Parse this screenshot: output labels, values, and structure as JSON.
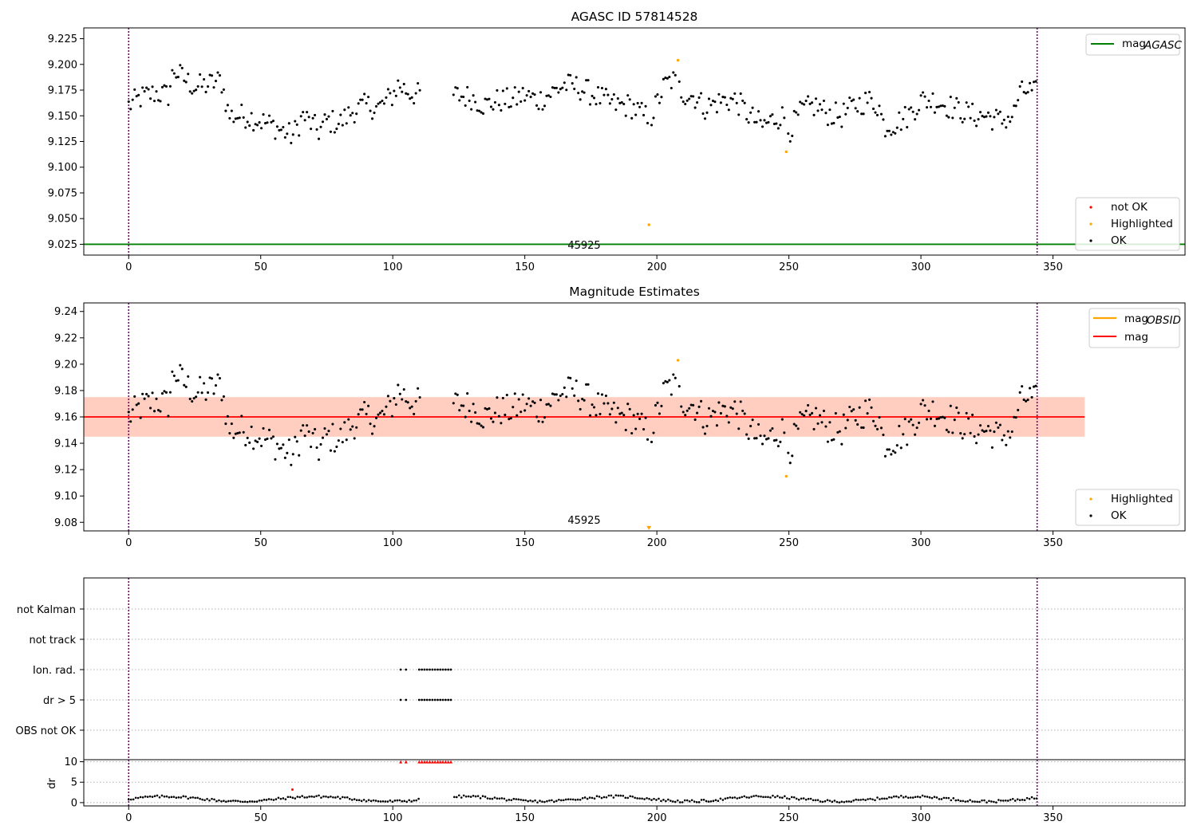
{
  "chart_data": [
    {
      "type": "scatter",
      "title": "AGASC ID 57814528",
      "xlim": [
        -17,
        400
      ],
      "ylim": [
        9.0145,
        9.2355
      ],
      "x_ticks": [
        0,
        50,
        100,
        150,
        200,
        250,
        300,
        350
      ],
      "y_ticks": [
        "9.025",
        "9.050",
        "9.075",
        "9.100",
        "9.125",
        "9.150",
        "9.175",
        "9.200",
        "9.225"
      ],
      "vlines": [
        0,
        344
      ],
      "hline": {
        "name": "mag_AGASC",
        "y": 9.025,
        "color": "#008000"
      },
      "annotation": {
        "text": "45925",
        "x": 172,
        "y": 9.025
      },
      "legend_lines": [
        {
          "name": "mag",
          "sub": "AGASC",
          "color": "#008000"
        }
      ],
      "legend_points": [
        {
          "name": "not OK",
          "color": "#ff0000"
        },
        {
          "name": "Highlighted",
          "color": "#ffa500"
        },
        {
          "name": "OK",
          "color": "#000000"
        }
      ],
      "highlighted": [
        [
          197,
          9.044
        ],
        [
          208,
          9.204
        ],
        [
          249,
          9.115
        ]
      ]
    },
    {
      "type": "scatter",
      "title": "Magnitude Estimates",
      "xlim": [
        -17,
        400
      ],
      "ylim": [
        9.0735,
        9.2465
      ],
      "x_ticks": [
        0,
        50,
        100,
        150,
        200,
        250,
        300,
        350
      ],
      "y_ticks": [
        "9.08",
        "9.10",
        "9.12",
        "9.14",
        "9.16",
        "9.18",
        "9.20",
        "9.22",
        "9.24"
      ],
      "vlines": [
        0,
        344
      ],
      "mag": 9.16,
      "band_outer": [
        9.145,
        9.175
      ],
      "band_inner": [
        9.145,
        9.175
      ],
      "band_x": [
        -17,
        362
      ],
      "annotation": {
        "text": "45925",
        "x": 172,
        "y": 9.077
      },
      "legend_lines": [
        {
          "name": "mag",
          "sub": "OBSID",
          "color": "#ffa500"
        },
        {
          "name": "mag",
          "sub": "",
          "color": "#ff0000"
        }
      ],
      "legend_points": [
        {
          "name": "Highlighted",
          "color": "#ffa500"
        },
        {
          "name": "OK",
          "color": "#000000"
        }
      ],
      "highlighted": [
        [
          208,
          9.203
        ],
        [
          249,
          9.115
        ],
        [
          197,
          9.075
        ]
      ]
    },
    {
      "type": "scatter",
      "title": "",
      "xlim": [
        -17,
        400
      ],
      "categories": [
        "OBS not OK",
        "dr > 5",
        "Ion. rad.",
        "not track",
        "not Kalman"
      ],
      "vlines": [
        0,
        344
      ],
      "flag_x": [
        103,
        105,
        110,
        111,
        112,
        113,
        114,
        115,
        116,
        117,
        118,
        119,
        120,
        121,
        122
      ]
    },
    {
      "type": "scatter",
      "title": "",
      "ylabel": "dr",
      "xlim": [
        -17,
        400
      ],
      "ylim": [
        -0.8,
        10.5
      ],
      "x_ticks": [
        0,
        50,
        100,
        150,
        200,
        250,
        300,
        350
      ],
      "y_ticks": [
        "0",
        "5",
        "10"
      ],
      "vlines": [
        0,
        344
      ],
      "clipped_y": 10,
      "clipped_x": [
        103,
        105,
        110,
        111,
        112,
        113,
        114,
        115,
        116,
        117,
        118,
        119,
        120,
        121,
        122
      ],
      "not_ok_points": [
        [
          62,
          3.2
        ]
      ]
    }
  ]
}
